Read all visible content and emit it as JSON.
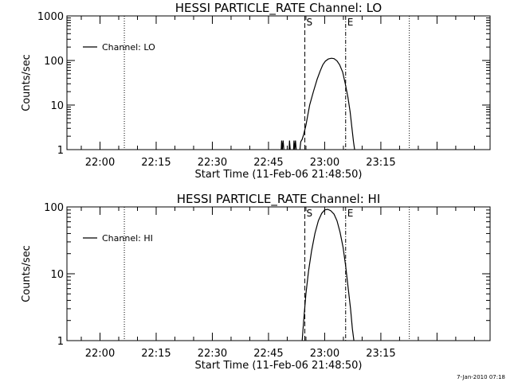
{
  "footer": {
    "timestamp": "7-Jan-2010 07:18"
  },
  "chart_data": [
    {
      "type": "line",
      "title": "HESSI PARTICLE_RATE Channel: LO",
      "xlabel": "Start Time (11-Feb-06 21:48:50)",
      "ylabel": "Counts/sec",
      "yscale": "log",
      "ylim": [
        1,
        1000
      ],
      "y_ticks": [
        1,
        10,
        100,
        1000
      ],
      "y_tick_labels": [
        "1",
        "10",
        "100",
        "1000"
      ],
      "xlim": [
        -8.83,
        104.17
      ],
      "x_ticks": [
        0,
        15,
        30,
        45,
        60,
        75
      ],
      "x_tick_labels": [
        "22:00",
        "22:15",
        "22:30",
        "22:45",
        "23:00",
        "23:15"
      ],
      "legend": {
        "entries": [
          "Channel: LO"
        ],
        "position": "top-left"
      },
      "markers": [
        {
          "x": 6.5,
          "style": "dotted",
          "label": ""
        },
        {
          "x": 54.7,
          "style": "dashed",
          "label": "S"
        },
        {
          "x": 65.6,
          "style": "dashdot",
          "label": "E"
        },
        {
          "x": 82.6,
          "style": "dotted",
          "label": ""
        }
      ],
      "series": [
        {
          "name": "Channel: LO",
          "segments": [
            [
              [
                48.4,
                1
              ],
              [
                48.5,
                1.6
              ],
              [
                48.7,
                1
              ],
              [
                48.9,
                1.6
              ],
              [
                49.1,
                1
              ]
            ],
            [
              [
                50.5,
                1
              ],
              [
                50.6,
                1.6
              ],
              [
                50.8,
                1
              ]
            ],
            [
              [
                51.7,
                1
              ],
              [
                51.8,
                1.6
              ],
              [
                52,
                1
              ],
              [
                52.2,
                1.6
              ],
              [
                52.4,
                1
              ]
            ],
            [
              [
                53.4,
                1
              ],
              [
                53.6,
                1.5
              ],
              [
                54,
                1.7
              ],
              [
                54.4,
                2.2
              ],
              [
                55,
                3.5
              ],
              [
                55.5,
                6
              ],
              [
                56,
                10
              ],
              [
                57,
                20
              ],
              [
                58,
                38
              ],
              [
                58.8,
                58
              ],
              [
                59.5,
                80
              ],
              [
                60.2,
                97
              ],
              [
                61,
                108
              ],
              [
                61.8,
                112
              ],
              [
                62.5,
                110
              ],
              [
                63.3,
                98
              ],
              [
                64,
                80
              ],
              [
                64.8,
                55
              ],
              [
                65.5,
                30
              ],
              [
                66.2,
                15
              ],
              [
                66.8,
                7
              ],
              [
                67.3,
                3
              ],
              [
                67.7,
                1.5
              ],
              [
                68,
                1
              ]
            ]
          ]
        }
      ]
    },
    {
      "type": "line",
      "title": "HESSI PARTICLE_RATE Channel: HI",
      "xlabel": "Start Time (11-Feb-06 21:48:50)",
      "ylabel": "Counts/sec",
      "yscale": "log",
      "ylim": [
        1,
        100
      ],
      "y_ticks": [
        1,
        10,
        100
      ],
      "y_tick_labels": [
        "1",
        "10",
        "100"
      ],
      "xlim": [
        -8.83,
        104.17
      ],
      "x_ticks": [
        0,
        15,
        30,
        45,
        60,
        75
      ],
      "x_tick_labels": [
        "22:00",
        "22:15",
        "22:30",
        "22:45",
        "23:00",
        "23:15"
      ],
      "legend": {
        "entries": [
          "Channel: HI"
        ],
        "position": "top-left"
      },
      "markers": [
        {
          "x": 6.5,
          "style": "dotted",
          "label": ""
        },
        {
          "x": 54.7,
          "style": "dashed",
          "label": "S"
        },
        {
          "x": 65.6,
          "style": "dashdot",
          "label": "E"
        },
        {
          "x": 82.6,
          "style": "dotted",
          "label": ""
        }
      ],
      "series": [
        {
          "name": "Channel: HI",
          "segments": [
            [
              [
                54,
                1
              ],
              [
                54.4,
                2
              ],
              [
                55,
                5
              ],
              [
                55.7,
                11
              ],
              [
                56.5,
                22
              ],
              [
                57.4,
                40
              ],
              [
                58.3,
                62
              ],
              [
                59.2,
                80
              ],
              [
                60,
                90
              ],
              [
                60.8,
                92
              ],
              [
                61.6,
                88
              ],
              [
                62.5,
                78
              ],
              [
                63.3,
                62
              ],
              [
                64.1,
                42
              ],
              [
                64.9,
                25
              ],
              [
                65.6,
                13
              ],
              [
                66.3,
                6
              ],
              [
                66.9,
                3
              ],
              [
                67.4,
                1.5
              ],
              [
                67.8,
                1
              ]
            ]
          ]
        }
      ]
    }
  ]
}
